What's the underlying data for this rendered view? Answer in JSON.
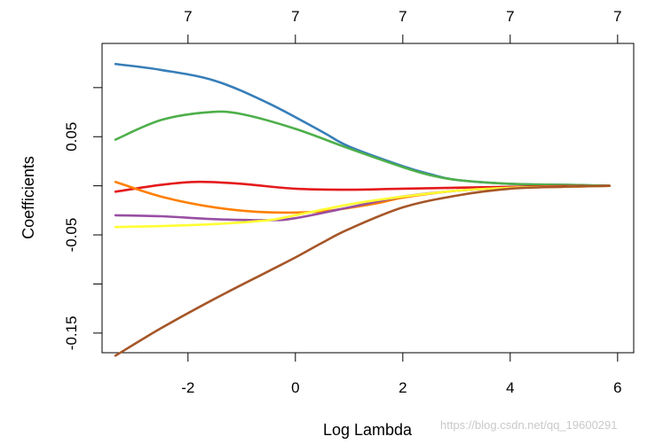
{
  "chart_data": {
    "type": "line",
    "title": "",
    "xlabel": "Log Lambda",
    "ylabel": "Coefficients",
    "xlim": [
      -3.6,
      6.3
    ],
    "ylim": [
      -0.17,
      0.145
    ],
    "x_ticks": [
      -2,
      0,
      2,
      4,
      6
    ],
    "x_tick_labels": [
      "-2",
      "0",
      "2",
      "4",
      "6"
    ],
    "y_ticks": [
      -0.15,
      -0.1,
      -0.05,
      0.0,
      0.05,
      0.1
    ],
    "y_tick_labels": [
      "-0.15",
      "",
      "-0.05",
      "",
      "0.05",
      ""
    ],
    "top_ticks": [
      -2,
      0,
      2,
      4,
      6
    ],
    "top_tick_labels": [
      "7",
      "7",
      "7",
      "7",
      "7"
    ],
    "grid": false,
    "legend": "none",
    "series": [
      {
        "color": "#377EB8",
        "x": [
          -3.35,
          -2.5,
          -1.5,
          -0.5,
          0.5,
          1.0,
          2.0,
          2.5,
          3.0,
          4.0,
          5.0,
          5.85
        ],
        "y": [
          0.124,
          0.118,
          0.107,
          0.084,
          0.055,
          0.04,
          0.02,
          0.012,
          0.006,
          0.002,
          0.001,
          0.0
        ]
      },
      {
        "color": "#4DAF4A",
        "x": [
          -3.35,
          -2.5,
          -1.6,
          -1.0,
          0.0,
          1.0,
          2.0,
          2.5,
          3.0,
          4.0,
          5.0,
          5.85
        ],
        "y": [
          0.047,
          0.067,
          0.075,
          0.073,
          0.058,
          0.038,
          0.019,
          0.011,
          0.006,
          0.002,
          0.001,
          0.0
        ]
      },
      {
        "color": "#E41A1C",
        "x": [
          -3.35,
          -2.5,
          -1.8,
          -1.0,
          0.0,
          1.0,
          2.0,
          4.0,
          5.85
        ],
        "y": [
          -0.006,
          0.001,
          0.004,
          0.002,
          -0.003,
          -0.004,
          -0.003,
          -0.001,
          0.0
        ]
      },
      {
        "color": "#FF7F00",
        "x": [
          -3.35,
          -2.5,
          -1.5,
          -0.5,
          0.5,
          1.5,
          2.0,
          3.0,
          4.0,
          5.0,
          5.85
        ],
        "y": [
          0.004,
          -0.011,
          -0.022,
          -0.027,
          -0.026,
          -0.018,
          -0.012,
          -0.005,
          -0.002,
          -0.001,
          0.0
        ]
      },
      {
        "color": "#984EA3",
        "x": [
          -3.35,
          -2.5,
          -1.5,
          -0.5,
          0.0,
          1.0,
          2.0,
          3.0,
          4.0,
          5.0,
          5.85
        ],
        "y": [
          -0.03,
          -0.031,
          -0.034,
          -0.035,
          -0.033,
          -0.022,
          -0.011,
          -0.005,
          -0.002,
          -0.001,
          0.0
        ]
      },
      {
        "color": "#FFFF33",
        "x": [
          -3.35,
          -2.5,
          -1.5,
          -0.5,
          0.0,
          1.0,
          2.0,
          3.0,
          4.0,
          5.0,
          5.85
        ],
        "y": [
          -0.042,
          -0.041,
          -0.039,
          -0.035,
          -0.03,
          -0.019,
          -0.011,
          -0.005,
          -0.002,
          -0.001,
          0.0
        ]
      },
      {
        "color": "#A65628",
        "x": [
          -3.35,
          -2.5,
          -1.5,
          -0.5,
          0.0,
          0.5,
          1.0,
          2.0,
          3.0,
          4.0,
          5.0,
          5.85
        ],
        "y": [
          -0.173,
          -0.145,
          -0.115,
          -0.087,
          -0.073,
          -0.058,
          -0.044,
          -0.022,
          -0.01,
          -0.003,
          -0.001,
          0.0
        ]
      }
    ]
  },
  "watermark": "https://blog.csdn.net/qq_19600291"
}
